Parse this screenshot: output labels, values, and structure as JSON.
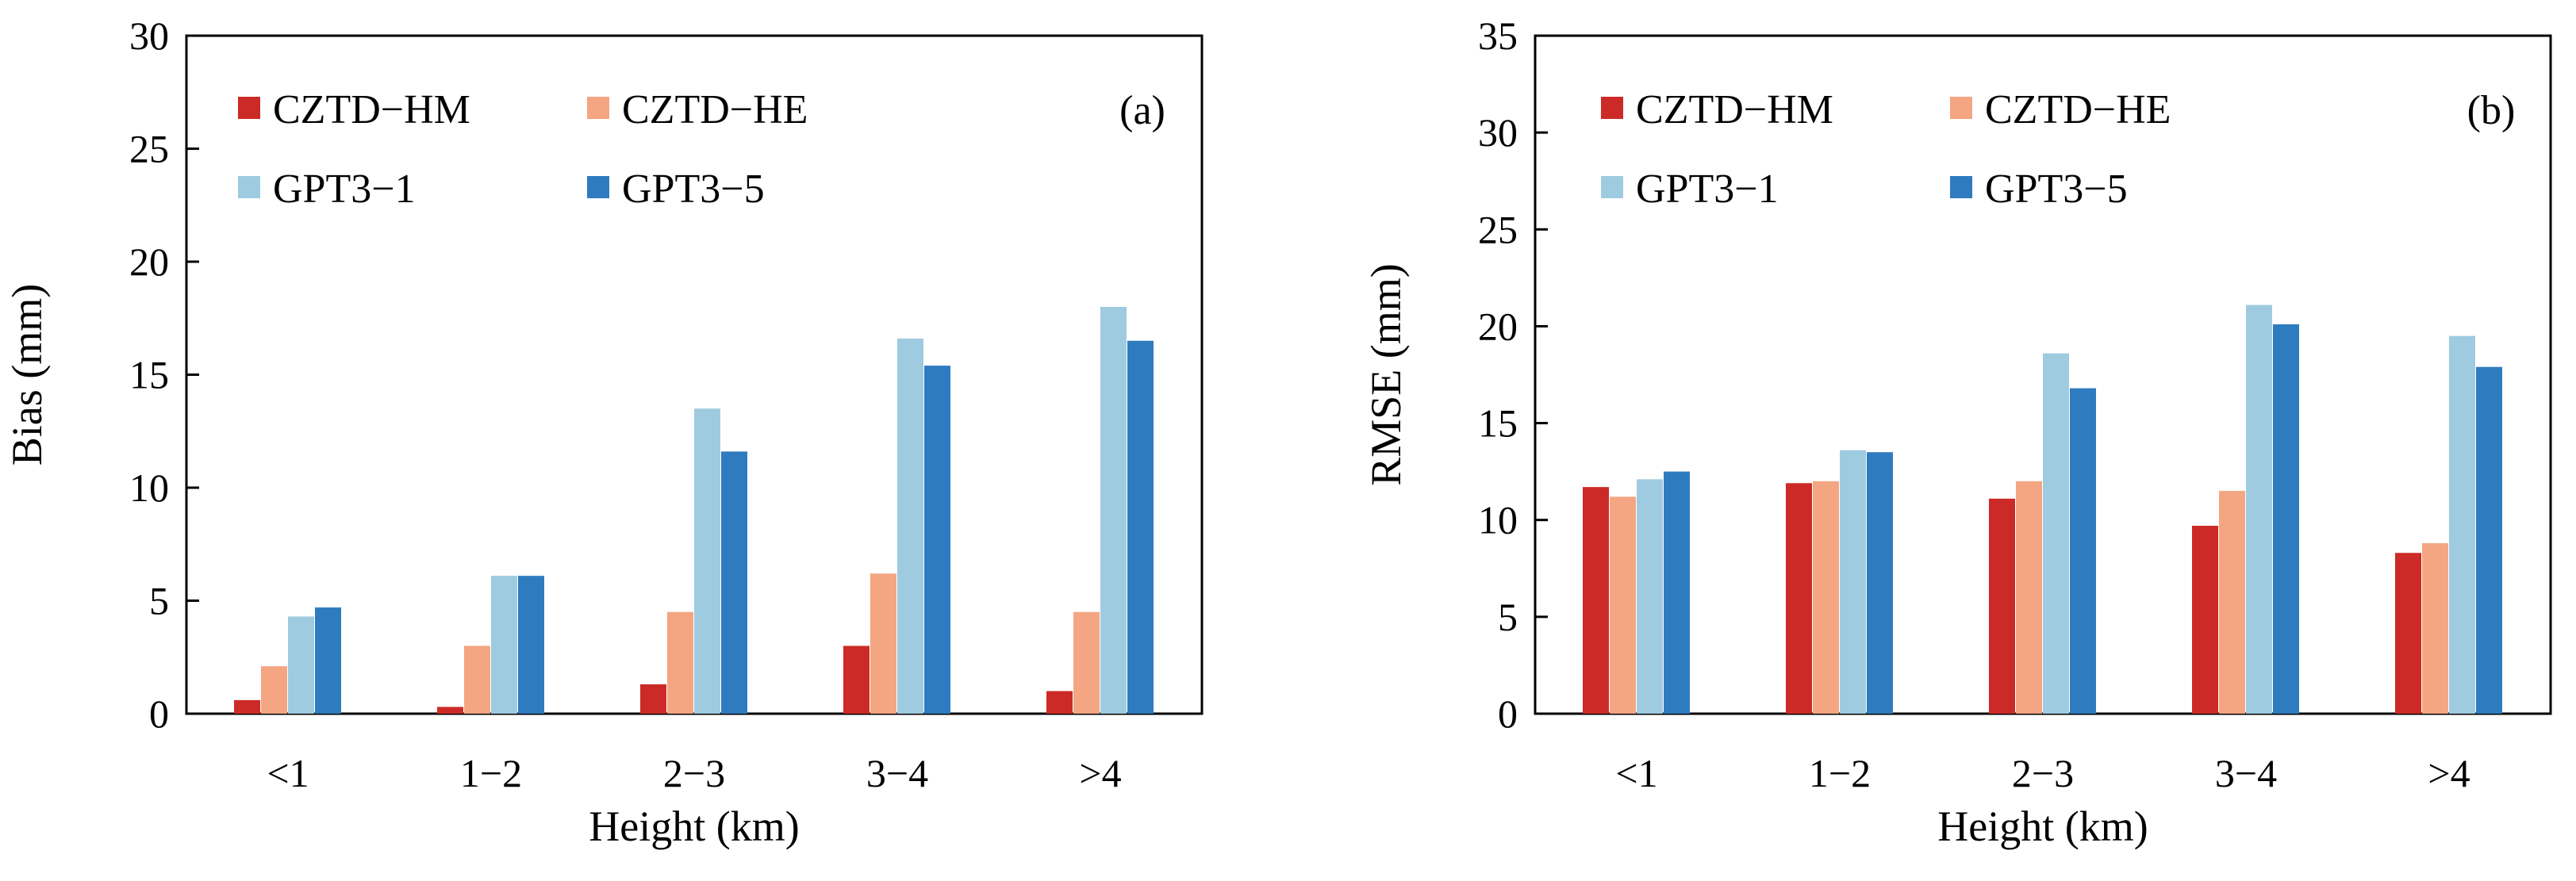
{
  "colors": {
    "CZTD-HM": "#cc2a26",
    "CZTD-HE": "#f4a582",
    "GPT3-1": "#9fcbe0",
    "GPT3-5": "#2f7bbf"
  },
  "chart_data": [
    {
      "type": "bar",
      "panel_label": "(a)",
      "categories": [
        "<1",
        "1−2",
        "2−3",
        "3−4",
        ">4"
      ],
      "series": [
        {
          "name": "CZTD−HM",
          "key": "CZTD-HM",
          "values": [
            0.6,
            0.3,
            1.3,
            3.0,
            1.0
          ]
        },
        {
          "name": "CZTD−HE",
          "key": "CZTD-HE",
          "values": [
            2.1,
            3.0,
            4.5,
            6.2,
            4.5
          ]
        },
        {
          "name": "GPT3−1",
          "key": "GPT3-1",
          "values": [
            4.3,
            6.1,
            13.5,
            16.6,
            18.0
          ]
        },
        {
          "name": "GPT3−5",
          "key": "GPT3-5",
          "values": [
            4.7,
            6.1,
            11.6,
            15.4,
            16.5
          ]
        }
      ],
      "xlabel": "Height (km)",
      "ylabel": "Bias (mm)",
      "ylim": [
        0,
        30
      ],
      "yticks": [
        0,
        5,
        10,
        15,
        20,
        25,
        30
      ],
      "grid": false,
      "legend_position": "top-left"
    },
    {
      "type": "bar",
      "panel_label": "(b)",
      "categories": [
        "<1",
        "1−2",
        "2−3",
        "3−4",
        ">4"
      ],
      "series": [
        {
          "name": "CZTD−HM",
          "key": "CZTD-HM",
          "values": [
            11.7,
            11.9,
            11.1,
            9.7,
            8.3
          ]
        },
        {
          "name": "CZTD−HE",
          "key": "CZTD-HE",
          "values": [
            11.2,
            12.0,
            12.0,
            11.5,
            8.8
          ]
        },
        {
          "name": "GPT3−1",
          "key": "GPT3-1",
          "values": [
            12.1,
            13.6,
            18.6,
            21.1,
            19.5
          ]
        },
        {
          "name": "GPT3−5",
          "key": "GPT3-5",
          "values": [
            12.5,
            13.5,
            16.8,
            20.1,
            17.9
          ]
        }
      ],
      "xlabel": "Height (km)",
      "ylabel": "RMSE (mm)",
      "ylim": [
        0,
        35
      ],
      "yticks": [
        0,
        5,
        10,
        15,
        20,
        25,
        30,
        35
      ],
      "grid": false,
      "legend_position": "top-left"
    }
  ]
}
